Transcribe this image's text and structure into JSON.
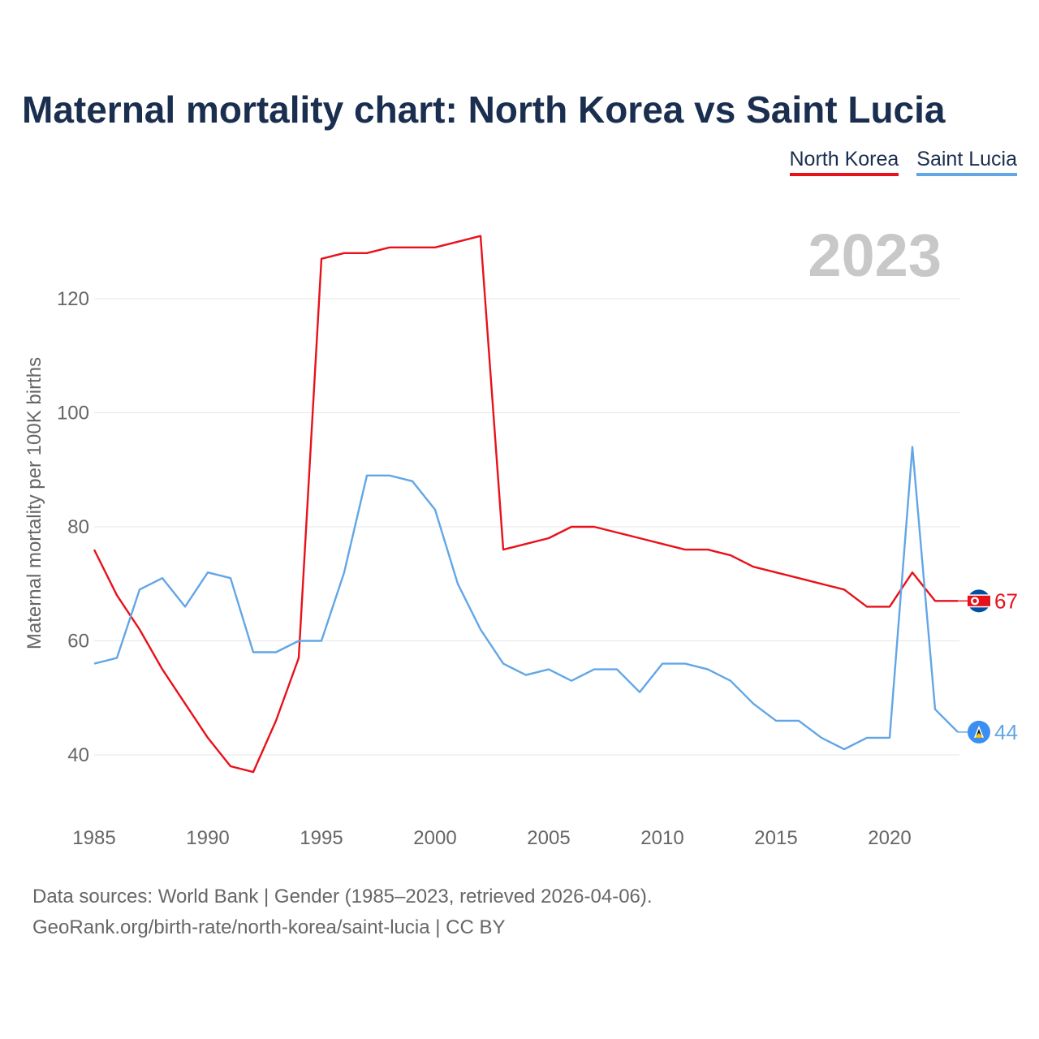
{
  "title": "Maternal mortality chart: North Korea vs Saint Lucia",
  "legend": {
    "north_korea": "North Korea",
    "saint_lucia": "Saint Lucia"
  },
  "year_watermark": "2023",
  "footer": {
    "line1": "Data sources: World Bank | Gender (1985–2023, retrieved 2026-04-06).",
    "line2": "GeoRank.org/birth-rate/north-korea/saint-lucia | CC BY"
  },
  "colors": {
    "north_korea": "#e8111a",
    "saint_lucia": "#62a6e6",
    "title": "#1a2e4f",
    "grid": "#e6e6e6",
    "watermark": "#c8c8c8",
    "axis_text": "#666666"
  },
  "chart_data": {
    "type": "line",
    "title": "Maternal mortality chart: North Korea vs Saint Lucia",
    "xlabel": "",
    "ylabel": "Maternal mortality per 100K births",
    "x": [
      1985,
      1986,
      1987,
      1988,
      1989,
      1990,
      1991,
      1992,
      1993,
      1994,
      1995,
      1996,
      1997,
      1998,
      1999,
      2000,
      2001,
      2002,
      2003,
      2004,
      2005,
      2006,
      2007,
      2008,
      2009,
      2010,
      2011,
      2012,
      2013,
      2014,
      2015,
      2016,
      2017,
      2018,
      2019,
      2020,
      2021,
      2022,
      2023
    ],
    "xlim": [
      1985,
      2023
    ],
    "ylim": [
      30,
      135
    ],
    "x_ticks": [
      1985,
      1990,
      1995,
      2000,
      2005,
      2010,
      2015,
      2020
    ],
    "y_ticks": [
      40,
      60,
      80,
      100,
      120
    ],
    "grid": true,
    "legend_position": "top-right",
    "series": [
      {
        "name": "North Korea",
        "color": "#e8111a",
        "end_label": "67",
        "flag_icon": "north-korea-flag-icon",
        "values": [
          76,
          68,
          62,
          55,
          49,
          43,
          38,
          37,
          46,
          57,
          127,
          128,
          128,
          129,
          129,
          129,
          130,
          131,
          76,
          77,
          78,
          80,
          80,
          79,
          78,
          77,
          76,
          76,
          75,
          73,
          72,
          71,
          70,
          69,
          66,
          66,
          72,
          67,
          67
        ]
      },
      {
        "name": "Saint Lucia",
        "color": "#62a6e6",
        "end_label": "44",
        "flag_icon": "saint-lucia-flag-icon",
        "values": [
          56,
          57,
          69,
          71,
          66,
          72,
          71,
          58,
          58,
          60,
          60,
          72,
          89,
          89,
          88,
          83,
          70,
          62,
          56,
          54,
          55,
          53,
          55,
          55,
          51,
          56,
          56,
          55,
          53,
          49,
          46,
          46,
          43,
          41,
          43,
          43,
          94,
          48,
          44
        ]
      }
    ]
  }
}
